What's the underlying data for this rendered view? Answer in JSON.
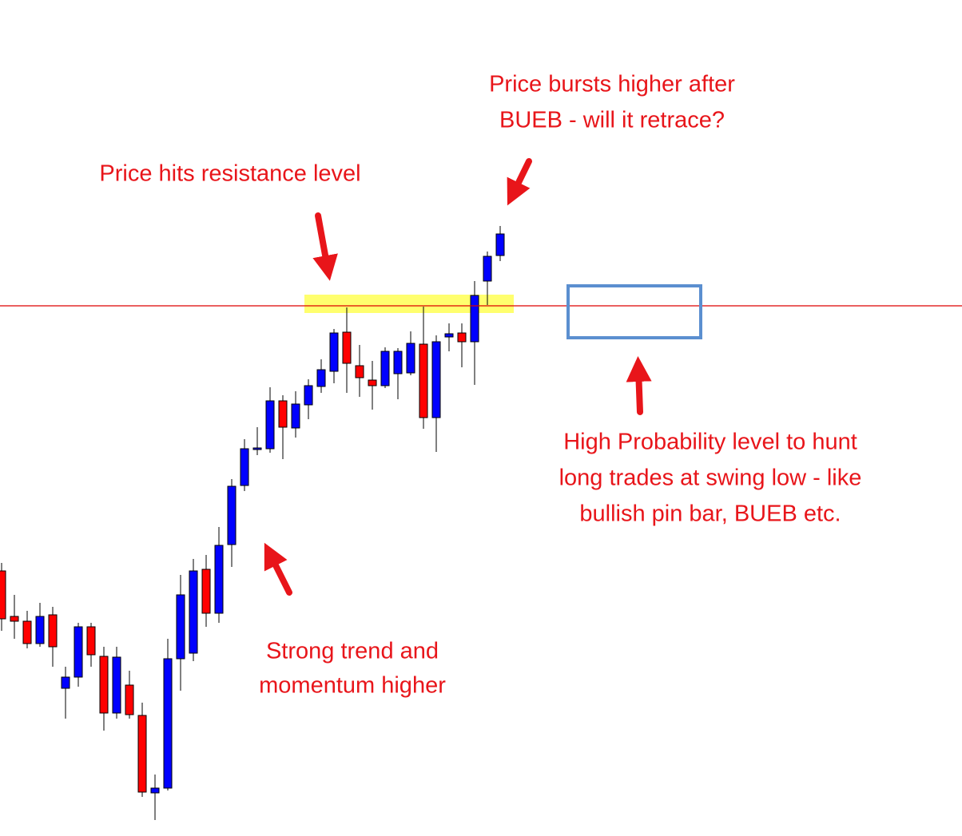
{
  "chart_data": {
    "type": "candlestick",
    "up_color": "#0000ff",
    "down_color": "#ff0000",
    "ylim": [
      0,
      1047
    ],
    "open": [
      332,
      275,
      269,
      241,
      277,
      185,
      199,
      262,
      225,
      154,
      189,
      151,
      54,
      60,
      222,
      229,
      334,
      279,
      365,
      439,
      484,
      485,
      545,
      511,
      540,
      563,
      582,
      631,
      589,
      571,
      564,
      579,
      580,
      616,
      524,
      625,
      630,
      619,
      695,
      727
    ],
    "high": [
      342,
      302,
      282,
      292,
      287,
      212,
      267,
      267,
      237,
      237,
      207,
      167,
      77,
      247,
      327,
      347,
      352,
      387,
      447,
      497,
      512,
      562,
      552,
      557,
      572,
      597,
      635,
      662,
      615,
      595,
      612,
      611,
      632,
      663,
      627,
      642,
      642,
      695,
      732,
      764
    ],
    "low": [
      257,
      247,
      235,
      237,
      212,
      147,
      187,
      212,
      132,
      147,
      147,
      49,
      20,
      57,
      182,
      219,
      262,
      267,
      337,
      432,
      477,
      480,
      472,
      499,
      522,
      555,
      567,
      555,
      550,
      534,
      561,
      547,
      577,
      510,
      481,
      607,
      587,
      565,
      665,
      720
    ],
    "close": [
      272,
      269,
      241,
      275,
      237,
      199,
      262,
      227,
      154,
      224,
      152,
      55,
      60,
      222,
      302,
      332,
      279,
      364,
      438,
      485,
      486,
      545,
      512,
      541,
      564,
      584,
      630,
      592,
      574,
      564,
      607,
      607,
      617,
      524,
      619,
      629,
      619,
      677,
      726,
      754
    ],
    "resistance_line": {
      "value": 664,
      "color": "#dd0000"
    },
    "resistance_zone": {
      "from": 655,
      "to": 678,
      "color": "#ffff55"
    },
    "target_box": {
      "from": 624,
      "to": 689,
      "color": "#5b8fd0"
    },
    "annotations": [
      {
        "lines": [
          "Price bursts higher after",
          "BUEB - will it retrace?"
        ]
      },
      {
        "lines": [
          "Price hits resistance level"
        ]
      },
      {
        "lines": [
          "High Probability level to hunt",
          "long trades at swing low - like",
          "bullish pin bar, BUEB etc."
        ]
      },
      {
        "lines": [
          "Strong trend and",
          "momentum higher"
        ]
      }
    ]
  }
}
